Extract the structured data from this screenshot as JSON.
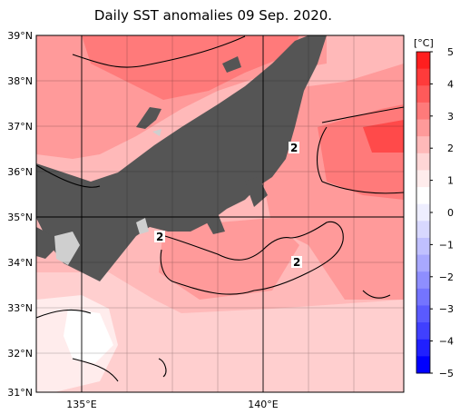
{
  "title": "Daily SST anomalies 09 Sep. 2020.",
  "lat_labels": [
    "39°N",
    "38°N",
    "37°N",
    "36°N",
    "35°N",
    "34°N",
    "33°N",
    "32°N",
    "31°N"
  ],
  "lon_labels": [
    "135°E",
    "140°E"
  ],
  "colorbar": {
    "unit": "[°C]",
    "ticks": [
      "5",
      "4",
      "3",
      "2",
      "1",
      "0",
      "−1",
      "−2",
      "−3",
      "−4",
      "−5"
    ],
    "colors": [
      "#ff1f1f",
      "#ff3b3b",
      "#ff5a5a",
      "#ff7a7a",
      "#ff9a9a",
      "#ffb9b9",
      "#ffd6d6",
      "#ffecec",
      "#ffffff",
      "#eeeeff",
      "#d8d8ff",
      "#c0c0ff",
      "#a8a8ff",
      "#8e8eff",
      "#7474ff",
      "#5a5aff",
      "#4040ff",
      "#2020ff",
      "#0000ff"
    ]
  },
  "contour_labels": [
    "2",
    "2",
    "2"
  ],
  "colors": {
    "land": "#555555",
    "lake": "#cfcfcf",
    "grid": "#000000"
  }
}
